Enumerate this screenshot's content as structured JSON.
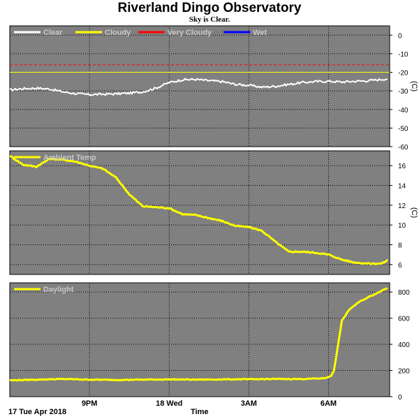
{
  "title": "Riverland Dingo Observatory",
  "subtitle": "Sky is Clear.",
  "date_label": "17 Tue Apr 2018",
  "time_label": "Time",
  "colors": {
    "panel_bg": "#808080",
    "grid": "#000000",
    "legend_text": "#c8c8c8",
    "clear": "#ffffff",
    "cloudy": "#ffff00",
    "very_cloudy": "#ff0000",
    "wet": "#0000ff"
  },
  "chart_data": [
    {
      "type": "line",
      "legend": [
        {
          "name": "Clear",
          "color": "#ffffff"
        },
        {
          "name": "Cloudy",
          "color": "#ffff00"
        },
        {
          "name": "Very Cloudy",
          "color": "#ff0000"
        },
        {
          "name": "Wet",
          "color": "#0000ff"
        }
      ],
      "ylabel": "(C)",
      "ylim": [
        -60,
        5
      ],
      "yticks": [
        0,
        -10,
        -20,
        -30,
        -40,
        -50,
        -60
      ],
      "thresholds": [
        {
          "name": "Very Cloudy",
          "y": -16,
          "color": "#ff0000",
          "style": "dashed"
        },
        {
          "name": "Cloudy",
          "y": -20,
          "color": "#ffff00",
          "style": "solid"
        }
      ],
      "series": [
        {
          "name": "Clear",
          "color": "#ffffff",
          "x": [
            18.0,
            18.5,
            19.0,
            19.5,
            20.0,
            20.5,
            21.0,
            21.5,
            22.0,
            22.5,
            23.0,
            23.5,
            24.0,
            24.5,
            25.0,
            25.5,
            26.0,
            26.5,
            27.0,
            27.5,
            28.0,
            28.5,
            29.0,
            29.5,
            30.0,
            30.5,
            31.0,
            31.5,
            32.0,
            32.2
          ],
          "values": [
            -29.5,
            -28.8,
            -28.5,
            -29.0,
            -30.5,
            -31.5,
            -32.0,
            -31.8,
            -31.6,
            -31.2,
            -30.5,
            -28.5,
            -25.5,
            -24.0,
            -23.8,
            -24.5,
            -25.0,
            -26.5,
            -27.0,
            -28.0,
            -27.5,
            -26.5,
            -25.5,
            -25.0,
            -24.8,
            -25.2,
            -24.8,
            -24.5,
            -23.8,
            -23.5
          ]
        }
      ]
    },
    {
      "type": "line",
      "legend": [
        {
          "name": "Ambient Temp",
          "color": "#ffff00"
        }
      ],
      "ylabel": "(C)",
      "ylim": [
        5,
        17.5
      ],
      "yticks": [
        16,
        14,
        12,
        10,
        8,
        6
      ],
      "series": [
        {
          "name": "Ambient Temp",
          "color": "#ffff00",
          "x": [
            18.0,
            18.5,
            19.0,
            19.5,
            20.0,
            20.5,
            21.0,
            21.5,
            22.0,
            22.5,
            23.0,
            23.5,
            24.0,
            24.5,
            25.0,
            25.5,
            26.0,
            26.5,
            27.0,
            27.5,
            28.0,
            28.5,
            29.0,
            29.5,
            30.0,
            30.5,
            31.0,
            31.5,
            32.0,
            32.2
          ],
          "values": [
            17.0,
            16.1,
            15.9,
            16.7,
            16.6,
            16.4,
            16.0,
            15.7,
            14.8,
            13.1,
            11.9,
            11.8,
            11.7,
            11.1,
            11.0,
            10.7,
            10.4,
            9.9,
            9.8,
            9.4,
            8.3,
            7.3,
            7.3,
            7.2,
            7.0,
            6.5,
            6.2,
            6.1,
            6.1,
            6.4
          ]
        }
      ]
    },
    {
      "type": "line",
      "legend": [
        {
          "name": "Daylight",
          "color": "#ffff00"
        }
      ],
      "ylabel": "",
      "ylim": [
        0,
        870
      ],
      "yticks": [
        800,
        600,
        400,
        200,
        0
      ],
      "series": [
        {
          "name": "Daylight",
          "color": "#ffff00",
          "x": [
            18.0,
            19.0,
            20.0,
            21.0,
            22.0,
            23.0,
            24.0,
            25.0,
            26.0,
            27.0,
            28.0,
            29.0,
            29.8,
            30.0,
            30.1,
            30.2,
            30.3,
            30.5,
            30.8,
            31.0,
            31.2,
            31.5,
            31.8,
            32.0,
            32.2
          ],
          "values": [
            125,
            130,
            135,
            130,
            128,
            130,
            132,
            130,
            132,
            133,
            135,
            135,
            140,
            150,
            160,
            200,
            320,
            580,
            670,
            700,
            730,
            760,
            790,
            810,
            830
          ]
        }
      ]
    }
  ],
  "x_axis": {
    "range": [
      18.0,
      32.3
    ],
    "ticks": [
      {
        "x": 21,
        "label": "9PM"
      },
      {
        "x": 24,
        "label": "18 Wed"
      },
      {
        "x": 27,
        "label": "3AM"
      },
      {
        "x": 30,
        "label": "6AM"
      }
    ]
  }
}
